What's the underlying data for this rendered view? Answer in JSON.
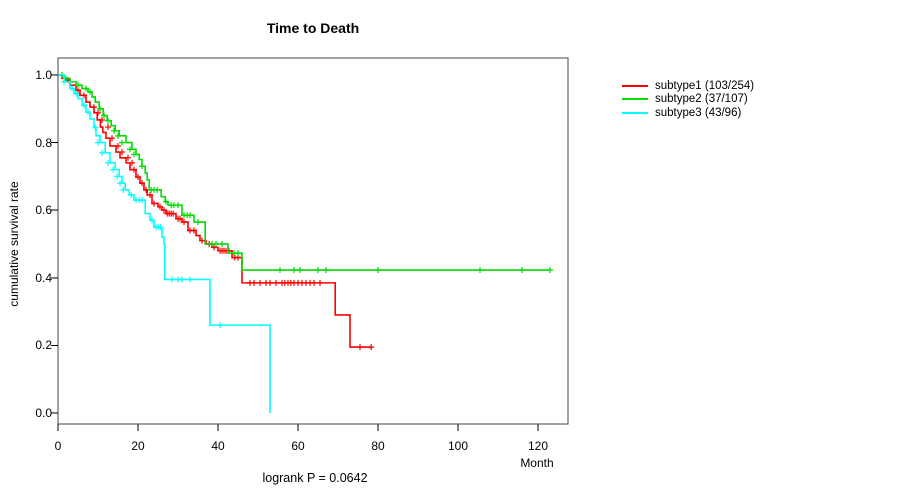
{
  "title": "Time to Death",
  "chart_data": {
    "type": "line",
    "subtype": "kaplan-meier-step",
    "title": "Time to Death",
    "xlabel": "Month",
    "ylabel": "cumulative survival rate",
    "annotation": "logrank P = 0.0642",
    "xlim": [
      0,
      127.5
    ],
    "ylim": [
      0.0,
      1.0
    ],
    "x_ticks": [
      0,
      20,
      40,
      60,
      80,
      100,
      120
    ],
    "y_ticks": [
      "0.0",
      "0.2",
      "0.4",
      "0.6",
      "0.8",
      "1.0"
    ],
    "grid": false,
    "legend_position": "right-outside",
    "axis_color": "#444444",
    "series": [
      {
        "name": "subtype1 (103/254)",
        "color": "#ff0000",
        "steps": [
          [
            0,
            1.0
          ],
          [
            1,
            0.99
          ],
          [
            2,
            0.985
          ],
          [
            3,
            0.97
          ],
          [
            4.5,
            0.955
          ],
          [
            5.5,
            0.94
          ],
          [
            7,
            0.92
          ],
          [
            8,
            0.905
          ],
          [
            9,
            0.888
          ],
          [
            9.8,
            0.867
          ],
          [
            10.6,
            0.846
          ],
          [
            11.2,
            0.83
          ],
          [
            12,
            0.813
          ],
          [
            13,
            0.79
          ],
          [
            14.5,
            0.772
          ],
          [
            15.5,
            0.755
          ],
          [
            17,
            0.74
          ],
          [
            18,
            0.72
          ],
          [
            19.5,
            0.698
          ],
          [
            20.5,
            0.68
          ],
          [
            21.5,
            0.66
          ],
          [
            22.3,
            0.645
          ],
          [
            23.5,
            0.62
          ],
          [
            25,
            0.61
          ],
          [
            26,
            0.6
          ],
          [
            27,
            0.59
          ],
          [
            29.5,
            0.575
          ],
          [
            31,
            0.565
          ],
          [
            32.5,
            0.54
          ],
          [
            34.5,
            0.525
          ],
          [
            35.5,
            0.51
          ],
          [
            37,
            0.5
          ],
          [
            38.5,
            0.49
          ],
          [
            40,
            0.48
          ],
          [
            43.5,
            0.46
          ],
          [
            46,
            0.385
          ],
          [
            69.3,
            0.29
          ],
          [
            73,
            0.195
          ],
          [
            78.5,
            0.195
          ]
        ],
        "censors": [
          [
            2.5,
            0.985
          ],
          [
            5,
            0.955
          ],
          [
            6.5,
            0.94
          ],
          [
            9,
            0.905
          ],
          [
            10,
            0.888
          ],
          [
            11,
            0.867
          ],
          [
            12.5,
            0.846
          ],
          [
            13.5,
            0.813
          ],
          [
            15,
            0.79
          ],
          [
            16,
            0.772
          ],
          [
            17.5,
            0.755
          ],
          [
            18.5,
            0.74
          ],
          [
            19,
            0.72
          ],
          [
            20,
            0.698
          ],
          [
            21,
            0.68
          ],
          [
            22,
            0.66
          ],
          [
            23,
            0.645
          ],
          [
            24,
            0.62
          ],
          [
            25.5,
            0.61
          ],
          [
            26.5,
            0.6
          ],
          [
            27.3,
            0.59
          ],
          [
            27.8,
            0.59
          ],
          [
            28.3,
            0.59
          ],
          [
            28.8,
            0.59
          ],
          [
            30,
            0.575
          ],
          [
            30.5,
            0.575
          ],
          [
            31.5,
            0.565
          ],
          [
            33,
            0.54
          ],
          [
            34,
            0.54
          ],
          [
            36,
            0.51
          ],
          [
            37.8,
            0.5
          ],
          [
            39,
            0.49
          ],
          [
            40.5,
            0.48
          ],
          [
            41,
            0.48
          ],
          [
            41.5,
            0.48
          ],
          [
            42,
            0.48
          ],
          [
            42.7,
            0.48
          ],
          [
            44.2,
            0.46
          ],
          [
            45,
            0.46
          ],
          [
            48,
            0.385
          ],
          [
            49,
            0.385
          ],
          [
            50.5,
            0.385
          ],
          [
            52,
            0.385
          ],
          [
            53,
            0.385
          ],
          [
            54.5,
            0.385
          ],
          [
            56,
            0.385
          ],
          [
            56.7,
            0.385
          ],
          [
            57.5,
            0.385
          ],
          [
            58.2,
            0.385
          ],
          [
            59,
            0.385
          ],
          [
            60,
            0.385
          ],
          [
            61,
            0.385
          ],
          [
            62,
            0.385
          ],
          [
            63,
            0.385
          ],
          [
            64,
            0.385
          ],
          [
            65.5,
            0.385
          ],
          [
            75.5,
            0.195
          ],
          [
            78.3,
            0.195
          ]
        ]
      },
      {
        "name": "subtype2 (37/107)",
        "color": "#00dd00",
        "steps": [
          [
            0,
            1.0
          ],
          [
            1.5,
            0.99
          ],
          [
            3,
            0.98
          ],
          [
            4.5,
            0.97
          ],
          [
            6,
            0.96
          ],
          [
            7.5,
            0.95
          ],
          [
            8.5,
            0.935
          ],
          [
            9.3,
            0.92
          ],
          [
            10.3,
            0.9
          ],
          [
            11.3,
            0.88
          ],
          [
            12.3,
            0.865
          ],
          [
            13.3,
            0.85
          ],
          [
            14.3,
            0.835
          ],
          [
            15.3,
            0.82
          ],
          [
            17,
            0.8
          ],
          [
            18.5,
            0.78
          ],
          [
            19.5,
            0.765
          ],
          [
            20.3,
            0.75
          ],
          [
            21,
            0.73
          ],
          [
            21.8,
            0.71
          ],
          [
            22.3,
            0.69
          ],
          [
            22.8,
            0.66
          ],
          [
            25.8,
            0.64
          ],
          [
            26.8,
            0.625
          ],
          [
            27.5,
            0.615
          ],
          [
            31,
            0.585
          ],
          [
            34,
            0.565
          ],
          [
            36.8,
            0.5
          ],
          [
            42.5,
            0.473
          ],
          [
            46,
            0.423
          ],
          [
            123,
            0.423
          ]
        ],
        "censors": [
          [
            1,
            1.0
          ],
          [
            2,
            0.99
          ],
          [
            5,
            0.97
          ],
          [
            7,
            0.96
          ],
          [
            8,
            0.95
          ],
          [
            10.5,
            0.9
          ],
          [
            11.5,
            0.88
          ],
          [
            12.5,
            0.865
          ],
          [
            14,
            0.835
          ],
          [
            15,
            0.82
          ],
          [
            16,
            0.8
          ],
          [
            18,
            0.78
          ],
          [
            19,
            0.765
          ],
          [
            21,
            0.73
          ],
          [
            23.3,
            0.66
          ],
          [
            24,
            0.66
          ],
          [
            24.8,
            0.66
          ],
          [
            27,
            0.625
          ],
          [
            28.3,
            0.615
          ],
          [
            29,
            0.615
          ],
          [
            30,
            0.615
          ],
          [
            31.5,
            0.585
          ],
          [
            32.3,
            0.585
          ],
          [
            33,
            0.585
          ],
          [
            35,
            0.565
          ],
          [
            38.5,
            0.5
          ],
          [
            39.5,
            0.5
          ],
          [
            41,
            0.5
          ],
          [
            44,
            0.473
          ],
          [
            45,
            0.473
          ],
          [
            55.5,
            0.423
          ],
          [
            59,
            0.423
          ],
          [
            60.5,
            0.423
          ],
          [
            65,
            0.423
          ],
          [
            67,
            0.423
          ],
          [
            80,
            0.423
          ],
          [
            105.5,
            0.423
          ],
          [
            116,
            0.423
          ],
          [
            123,
            0.423
          ]
        ]
      },
      {
        "name": "subtype3 (43/96)",
        "color": "#00ffff",
        "steps": [
          [
            0,
            1.0
          ],
          [
            1.5,
            0.98
          ],
          [
            3,
            0.96
          ],
          [
            4,
            0.945
          ],
          [
            5,
            0.93
          ],
          [
            6,
            0.91
          ],
          [
            7,
            0.89
          ],
          [
            8,
            0.87
          ],
          [
            9,
            0.845
          ],
          [
            9.5,
            0.82
          ],
          [
            10.5,
            0.8
          ],
          [
            11.8,
            0.77
          ],
          [
            13,
            0.74
          ],
          [
            14.3,
            0.72
          ],
          [
            15.3,
            0.7
          ],
          [
            16,
            0.68
          ],
          [
            16.8,
            0.66
          ],
          [
            17.8,
            0.645
          ],
          [
            19,
            0.63
          ],
          [
            21.8,
            0.59
          ],
          [
            23,
            0.57
          ],
          [
            24,
            0.55
          ],
          [
            26,
            0.52
          ],
          [
            26.5,
            0.5
          ],
          [
            26.7,
            0.395
          ],
          [
            38,
            0.26
          ],
          [
            53,
            0.0
          ]
        ],
        "censors": [
          [
            1.5,
            0.98
          ],
          [
            3.5,
            0.96
          ],
          [
            4.5,
            0.945
          ],
          [
            6.5,
            0.91
          ],
          [
            7.5,
            0.89
          ],
          [
            9.3,
            0.845
          ],
          [
            10,
            0.8
          ],
          [
            11,
            0.77
          ],
          [
            12.5,
            0.74
          ],
          [
            13.8,
            0.72
          ],
          [
            14.8,
            0.7
          ],
          [
            15.5,
            0.68
          ],
          [
            16.3,
            0.66
          ],
          [
            18.3,
            0.645
          ],
          [
            19.5,
            0.63
          ],
          [
            20.3,
            0.63
          ],
          [
            21,
            0.63
          ],
          [
            23.5,
            0.57
          ],
          [
            24.5,
            0.55
          ],
          [
            25,
            0.55
          ],
          [
            25.6,
            0.55
          ],
          [
            28.5,
            0.395
          ],
          [
            30,
            0.395
          ],
          [
            31,
            0.395
          ],
          [
            33,
            0.395
          ],
          [
            40.5,
            0.26
          ]
        ]
      }
    ]
  }
}
